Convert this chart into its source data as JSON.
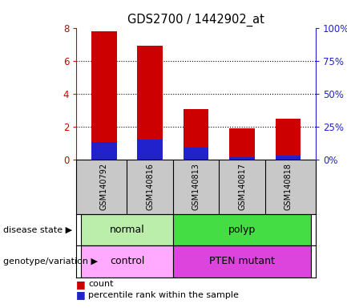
{
  "title": "GDS2700 / 1442902_at",
  "samples": [
    "GSM140792",
    "GSM140816",
    "GSM140813",
    "GSM140817",
    "GSM140818"
  ],
  "count_values": [
    7.8,
    6.9,
    3.05,
    1.9,
    2.45
  ],
  "percentile_left": [
    1.05,
    1.2,
    0.7,
    0.12,
    0.22
  ],
  "y_left_ticks": [
    0,
    2,
    4,
    6,
    8
  ],
  "y_right_ticks": [
    0,
    25,
    50,
    75,
    100
  ],
  "bar_width": 0.55,
  "count_color": "#cc0000",
  "percentile_color": "#2222cc",
  "disease_state_groups": [
    {
      "label": "normal",
      "start": 0,
      "end": 2,
      "color": "#bbeeaa"
    },
    {
      "label": "polyp",
      "start": 2,
      "end": 5,
      "color": "#44dd44"
    }
  ],
  "genotype_groups": [
    {
      "label": "control",
      "start": 0,
      "end": 2,
      "color": "#ffaaff"
    },
    {
      "label": "PTEN mutant",
      "start": 2,
      "end": 5,
      "color": "#dd44dd"
    }
  ],
  "legend_count_label": "count",
  "legend_percentile_label": "percentile rank within the sample",
  "disease_state_label": "disease state",
  "genotype_label": "genotype/variation",
  "left_tick_color": "#cc0000",
  "right_tick_color": "#2222cc",
  "grid_lines": [
    2,
    4,
    6
  ],
  "sample_bg": "#c8c8c8",
  "border_color": "#000000"
}
